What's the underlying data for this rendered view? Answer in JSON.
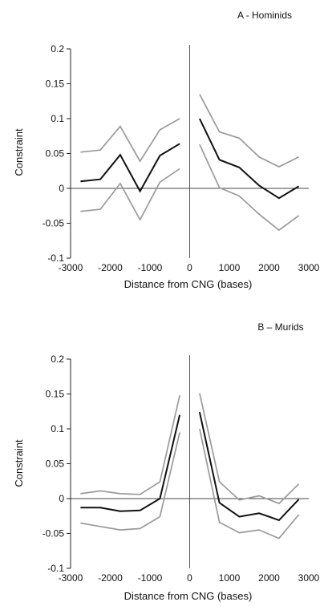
{
  "chart_data": [
    {
      "type": "line",
      "title": "A - Hominids",
      "xlabel": "Distance from CNG (bases)",
      "ylabel": "Constraint",
      "xlim": [
        -3000,
        3000
      ],
      "ylim": [
        -0.1,
        0.2
      ],
      "xticks": [
        -3000,
        -2000,
        -1000,
        0,
        1000,
        2000,
        3000
      ],
      "yticks": [
        -0.1,
        -0.05,
        0,
        0.05,
        0.1,
        0.15,
        0.2
      ],
      "ytick_labels": [
        "-0.1",
        "-0.05",
        "0",
        "0.05",
        "0.1",
        "0.15",
        "0.2"
      ],
      "grid": false,
      "series": [
        {
          "role": "mean",
          "color": "#111111",
          "segments": [
            {
              "x": [
                -2750,
                -2250,
                -1750,
                -1250,
                -750,
                -250
              ],
              "y": [
                0.01,
                0.013,
                0.048,
                -0.004,
                0.047,
                0.064
              ]
            },
            {
              "x": [
                250,
                750,
                1250,
                1750,
                2250,
                2750
              ],
              "y": [
                0.1,
                0.041,
                0.03,
                0.004,
                -0.014,
                0.003
              ]
            }
          ]
        },
        {
          "role": "upper",
          "color": "#9a9a9a",
          "segments": [
            {
              "x": [
                -2750,
                -2250,
                -1750,
                -1250,
                -750,
                -250
              ],
              "y": [
                0.052,
                0.055,
                0.089,
                0.039,
                0.084,
                0.1
              ]
            },
            {
              "x": [
                250,
                750,
                1250,
                1750,
                2250,
                2750
              ],
              "y": [
                0.135,
                0.081,
                0.072,
                0.045,
                0.031,
                0.045
              ]
            }
          ]
        },
        {
          "role": "lower",
          "color": "#9a9a9a",
          "segments": [
            {
              "x": [
                -2750,
                -2250,
                -1750,
                -1250,
                -750,
                -250
              ],
              "y": [
                -0.033,
                -0.03,
                0.007,
                -0.045,
                0.009,
                0.028
              ]
            },
            {
              "x": [
                250,
                750,
                1250,
                1750,
                2250,
                2750
              ],
              "y": [
                0.063,
                0.001,
                -0.011,
                -0.037,
                -0.06,
                -0.039
              ]
            }
          ]
        }
      ]
    },
    {
      "type": "line",
      "title": "B – Murids",
      "xlabel": "Distance from CNG (bases)",
      "ylabel": "Constraint",
      "xlim": [
        -3000,
        3000
      ],
      "ylim": [
        -0.1,
        0.2
      ],
      "xticks": [
        -3000,
        -2000,
        -1000,
        0,
        1000,
        2000,
        3000
      ],
      "yticks": [
        -0.1,
        -0.05,
        0,
        0.05,
        0.1,
        0.15,
        0.2
      ],
      "ytick_labels": [
        "-0.1",
        "-0.05",
        "0",
        "0.05",
        "0.1",
        "0.15",
        "0.2"
      ],
      "grid": false,
      "series": [
        {
          "role": "mean",
          "color": "#111111",
          "segments": [
            {
              "x": [
                -2750,
                -2250,
                -1750,
                -1250,
                -750,
                -250
              ],
              "y": [
                -0.013,
                -0.013,
                -0.018,
                -0.017,
                0.0,
                0.12
              ]
            },
            {
              "x": [
                250,
                750,
                1250,
                1750,
                2250,
                2750
              ],
              "y": [
                0.124,
                -0.006,
                -0.026,
                -0.021,
                -0.031,
                -0.001
              ]
            }
          ]
        },
        {
          "role": "upper",
          "color": "#9a9a9a",
          "segments": [
            {
              "x": [
                -2750,
                -2250,
                -1750,
                -1250,
                -750,
                -250
              ],
              "y": [
                0.007,
                0.011,
                0.007,
                0.006,
                0.024,
                0.148
              ]
            },
            {
              "x": [
                250,
                750,
                1250,
                1750,
                2250,
                2750
              ],
              "y": [
                0.151,
                0.024,
                -0.002,
                0.004,
                -0.007,
                0.021
              ]
            }
          ]
        },
        {
          "role": "lower",
          "color": "#9a9a9a",
          "segments": [
            {
              "x": [
                -2750,
                -2250,
                -1750,
                -1250,
                -750,
                -250
              ],
              "y": [
                -0.035,
                -0.04,
                -0.045,
                -0.043,
                -0.026,
                0.095
              ]
            },
            {
              "x": [
                250,
                750,
                1250,
                1750,
                2250,
                2750
              ],
              "y": [
                0.1,
                -0.034,
                -0.049,
                -0.045,
                -0.057,
                -0.023
              ]
            }
          ]
        }
      ]
    }
  ]
}
